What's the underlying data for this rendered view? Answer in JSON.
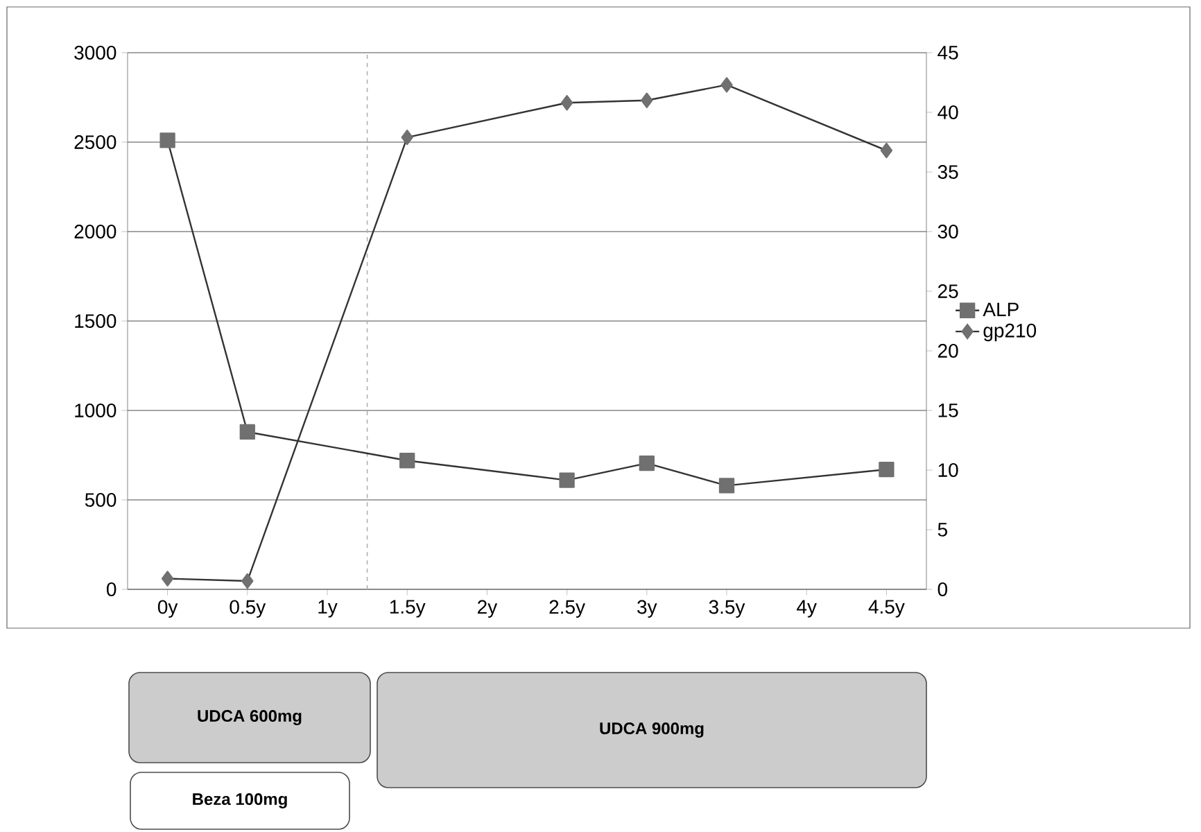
{
  "chart_data": {
    "type": "line",
    "x": [
      0,
      0.5,
      1.5,
      2.5,
      3,
      3.5,
      4.5
    ],
    "xlim": [
      -0.25,
      4.75
    ],
    "xticks": [
      {
        "value": 0,
        "label": "0y"
      },
      {
        "value": 0.5,
        "label": "0.5y"
      },
      {
        "value": 1,
        "label": "1y"
      },
      {
        "value": 1.5,
        "label": "1.5y"
      },
      {
        "value": 2,
        "label": "2y"
      },
      {
        "value": 2.5,
        "label": "2.5y"
      },
      {
        "value": 3,
        "label": "3y"
      },
      {
        "value": 3.5,
        "label": "3.5y"
      },
      {
        "value": 4,
        "label": "4y"
      },
      {
        "value": 4.5,
        "label": "4.5y"
      }
    ],
    "ylim": [
      0,
      3000
    ],
    "yticks": [
      0,
      500,
      1000,
      1500,
      2000,
      2500,
      3000
    ],
    "y2lim": [
      0,
      45
    ],
    "y2ticks": [
      0,
      5,
      10,
      15,
      20,
      25,
      30,
      35,
      40,
      45
    ],
    "series": [
      {
        "name": "ALP",
        "color": "#707070",
        "marker": "square",
        "values": [
          2510,
          880,
          720,
          610,
          705,
          580,
          670
        ]
      },
      {
        "name": "gp210",
        "color": "#707070",
        "marker": "diamond",
        "axis": "y2",
        "values": [
          0.9,
          0.7,
          37.9,
          40.8,
          41.0,
          42.3,
          36.8
        ]
      }
    ],
    "ref_lines": [
      {
        "axis": "x",
        "value": 1.25,
        "color": "#b0b0b0",
        "line_style": "dashed"
      }
    ],
    "annotations": [
      "UDCA 600mg",
      "UDCA 900mg",
      "Beza 100mg"
    ],
    "grid": "y",
    "legend": "right",
    "line_style": "solid"
  }
}
